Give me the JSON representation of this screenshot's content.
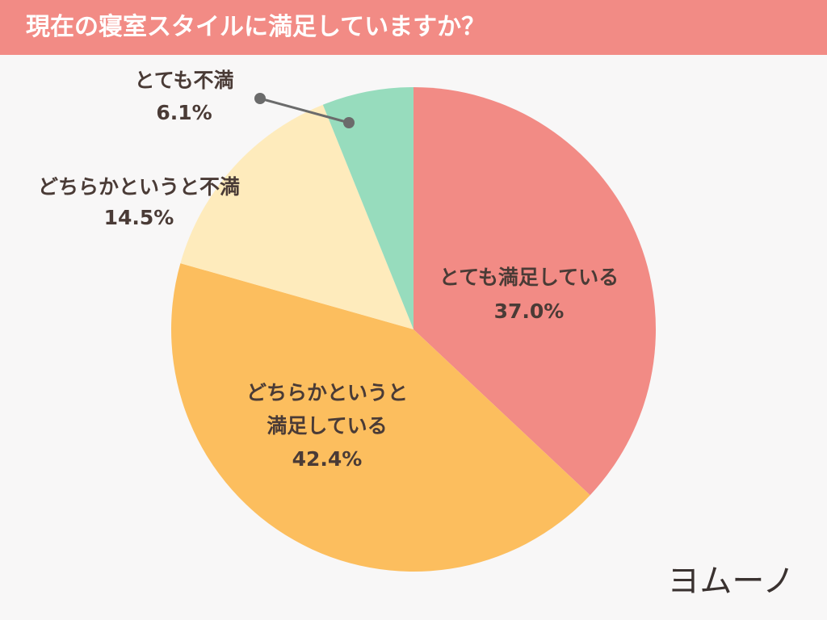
{
  "title": "現在の寝室スタイルに満足していますか？",
  "brand": "ヨムーノ",
  "chart_data": {
    "type": "pie",
    "title": "現在の寝室スタイルに満足していますか？",
    "slices": [
      {
        "name": "とても満足している",
        "label_lines": [
          "とても満足している",
          "37.0%"
        ],
        "value": 37.0,
        "color": "#f28b85"
      },
      {
        "name": "どちらかというと満足している",
        "label_lines": [
          "どちらかというと",
          "満足している",
          "42.4%"
        ],
        "value": 42.4,
        "color": "#fcbe5e"
      },
      {
        "name": "どちらかというと不満",
        "label_lines": [
          "どちらかというと不満",
          "14.5%"
        ],
        "value": 14.5,
        "color": "#feebbc"
      },
      {
        "name": "とても不満",
        "label_lines": [
          "とても不満",
          "6.1%"
        ],
        "value": 6.1,
        "color": "#97dcbd"
      }
    ],
    "start": "12 o'clock",
    "direction": "clockwise"
  }
}
